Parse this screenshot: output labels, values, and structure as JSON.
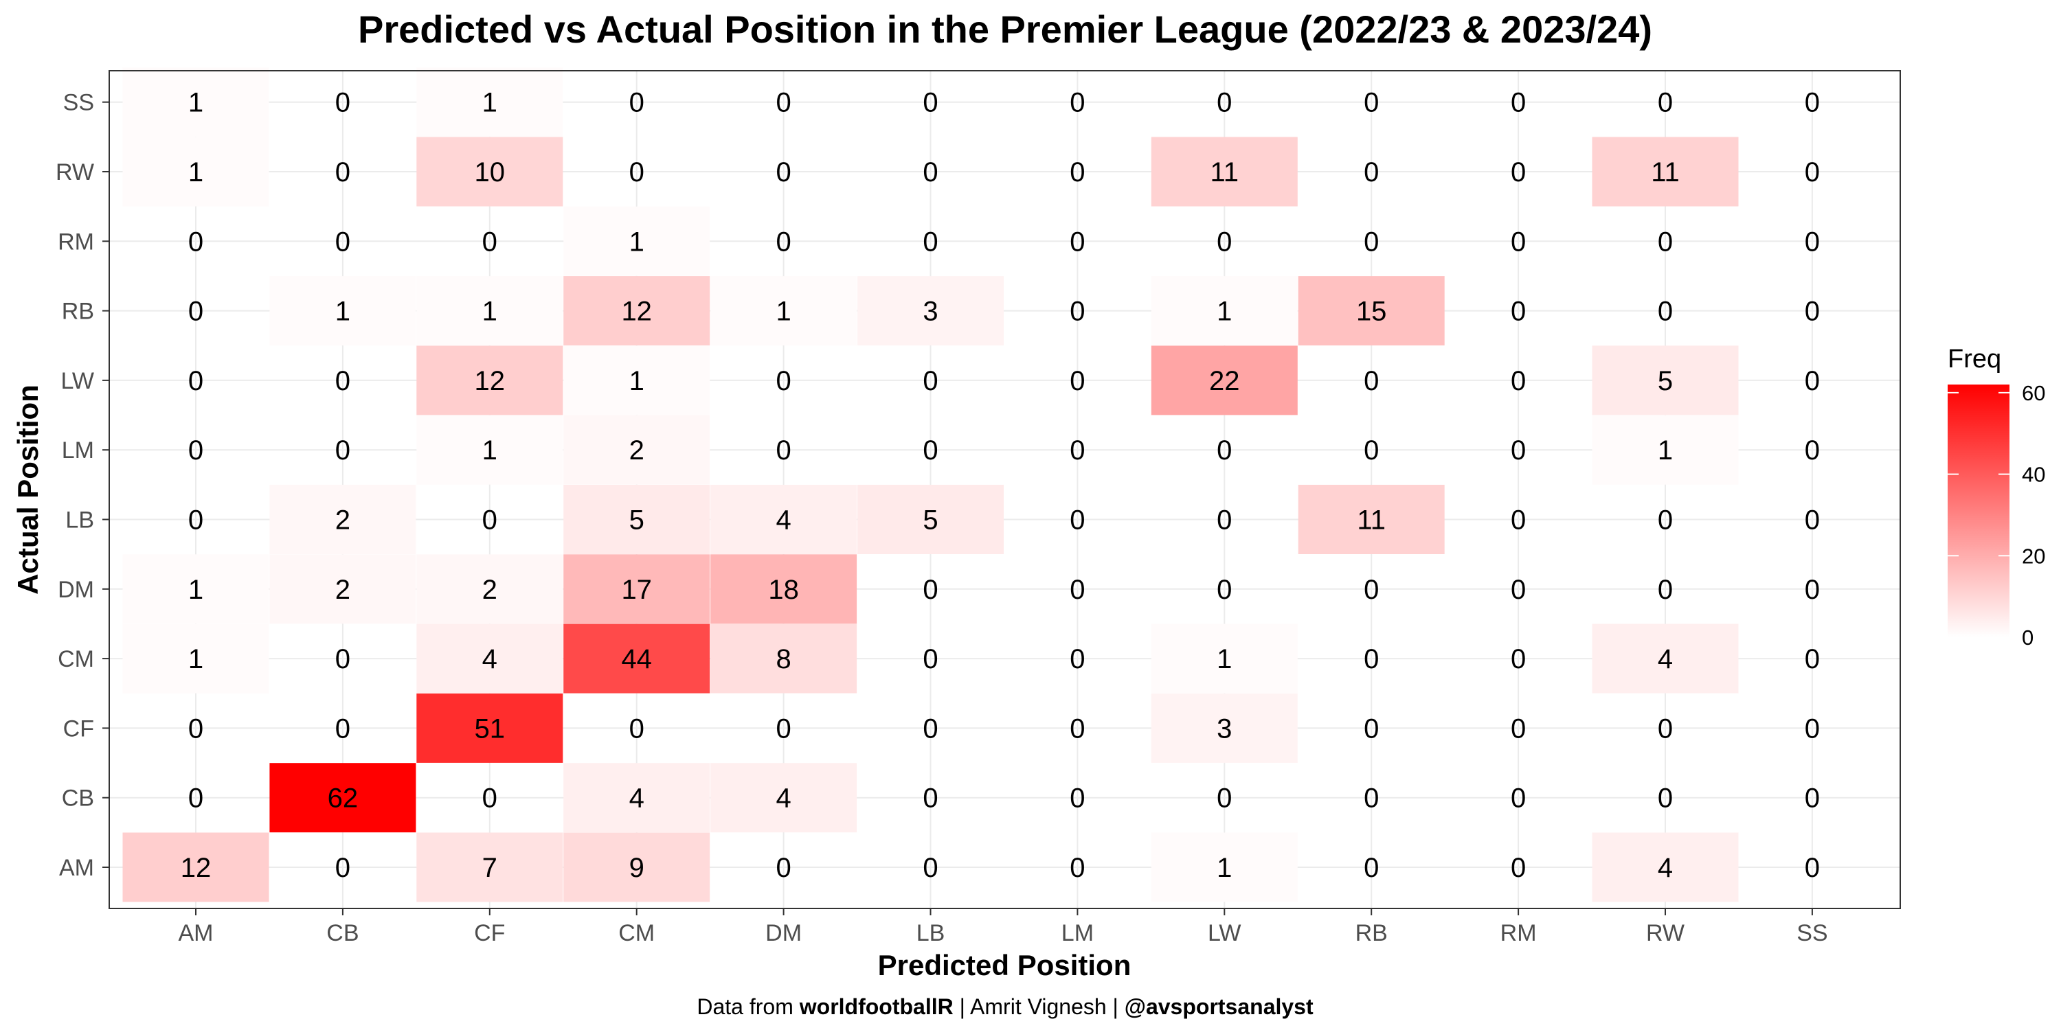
{
  "chart_data": {
    "type": "heatmap",
    "title": "Predicted vs Actual Position in the Premier League (2022/23 & 2023/24)",
    "xlabel": "Predicted Position",
    "ylabel": "Actual Position",
    "x_categories": [
      "AM",
      "CB",
      "CF",
      "CM",
      "DM",
      "LB",
      "LM",
      "LW",
      "RB",
      "RM",
      "RW",
      "SS"
    ],
    "y_categories": [
      "AM",
      "CB",
      "CF",
      "CM",
      "DM",
      "LB",
      "LM",
      "LW",
      "RB",
      "RM",
      "RW",
      "SS"
    ],
    "values": [
      [
        12,
        0,
        7,
        9,
        0,
        0,
        0,
        1,
        0,
        0,
        4,
        0
      ],
      [
        0,
        62,
        0,
        4,
        4,
        0,
        0,
        0,
        0,
        0,
        0,
        0
      ],
      [
        0,
        0,
        51,
        0,
        0,
        0,
        0,
        3,
        0,
        0,
        0,
        0
      ],
      [
        1,
        0,
        4,
        44,
        8,
        0,
        0,
        1,
        0,
        0,
        4,
        0
      ],
      [
        1,
        2,
        2,
        17,
        18,
        0,
        0,
        0,
        0,
        0,
        0,
        0
      ],
      [
        0,
        2,
        0,
        5,
        4,
        5,
        0,
        0,
        11,
        0,
        0,
        0
      ],
      [
        0,
        0,
        1,
        2,
        0,
        0,
        0,
        0,
        0,
        0,
        1,
        0
      ],
      [
        0,
        0,
        12,
        1,
        0,
        0,
        0,
        22,
        0,
        0,
        5,
        0
      ],
      [
        0,
        1,
        1,
        12,
        1,
        3,
        0,
        1,
        15,
        0,
        0,
        0
      ],
      [
        0,
        0,
        0,
        1,
        0,
        0,
        0,
        0,
        0,
        0,
        0,
        0
      ],
      [
        1,
        0,
        10,
        0,
        0,
        0,
        0,
        11,
        0,
        0,
        11,
        0
      ],
      [
        1,
        0,
        1,
        0,
        0,
        0,
        0,
        0,
        0,
        0,
        0,
        0
      ]
    ],
    "legend": {
      "title": "Freq",
      "ticks": [
        0,
        20,
        40,
        60
      ],
      "range": [
        0,
        62
      ],
      "color_low": "#FFFFFF",
      "color_high": "#FF0000",
      "placement": "right"
    },
    "grid": true,
    "caption": {
      "prefix": "Data from ",
      "source": "worldfootballR",
      "middle": " | Amrit Vignesh | ",
      "handle": "@avsportsanalyst"
    }
  }
}
